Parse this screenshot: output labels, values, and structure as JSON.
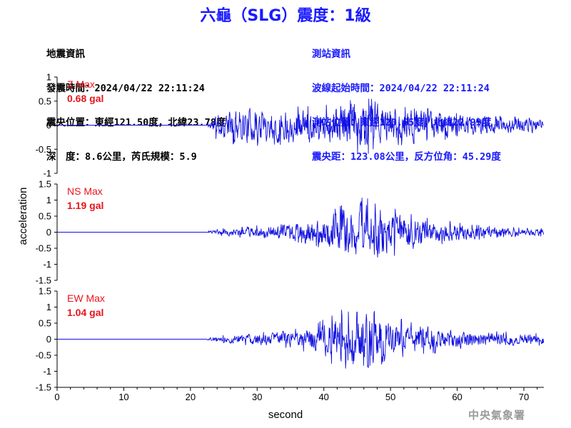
{
  "header": {
    "title": "六龜（SLG）震度：1級",
    "left_lines": [
      "地震資訊",
      "發震時間：2024/04/22 22:11:24",
      "震央位置：東經121.50度，北緯23.78度",
      "深　度：8.6公里，芮氏規模：5.9"
    ],
    "right_lines": [
      "測站資訊",
      "波線起始時間：2024/04/22 22:11:24",
      "測站位置：東經120.65度，北緯22.99度",
      "震央距：123.08公里，反方位角：45.29度"
    ]
  },
  "watermark": "中央氣象署",
  "colors": {
    "trace": "#1010e0",
    "max_label": "#e8141c",
    "title": "#1a1aff",
    "axis": "#000000"
  },
  "chart_data": {
    "type": "line",
    "xlabel": "second",
    "ylabel": "acceleration",
    "xlim": [
      0,
      73
    ],
    "x_ticks": [
      0,
      10,
      20,
      30,
      40,
      50,
      60,
      70
    ],
    "grid": false,
    "onset_second": 22.5,
    "panels": [
      {
        "component": "Z",
        "max_label": "Z Max",
        "max_value": "0.68 gal",
        "ylim": [
          -1,
          1
        ],
        "y_ticks": [
          1,
          0.5,
          0,
          -0.5,
          -1
        ],
        "y_tick_labels": [
          "1",
          "0.5",
          "0",
          "-0.5",
          "-1"
        ],
        "envelope": [
          [
            0,
            0.005
          ],
          [
            22.3,
            0.005
          ],
          [
            22.8,
            0.12
          ],
          [
            24,
            0.3
          ],
          [
            27,
            0.4
          ],
          [
            30,
            0.42
          ],
          [
            33,
            0.4
          ],
          [
            36,
            0.38
          ],
          [
            40,
            0.4
          ],
          [
            43,
            0.5
          ],
          [
            45,
            0.62
          ],
          [
            47,
            0.55
          ],
          [
            50,
            0.45
          ],
          [
            53,
            0.38
          ],
          [
            57,
            0.32
          ],
          [
            60,
            0.25
          ],
          [
            65,
            0.2
          ],
          [
            70,
            0.17
          ],
          [
            73,
            0.15
          ]
        ],
        "seed": 11
      },
      {
        "component": "NS",
        "max_label": "NS Max",
        "max_value": "1.19 gal",
        "ylim": [
          -1.5,
          1.5
        ],
        "y_ticks": [
          1.5,
          1,
          0.5,
          0,
          -0.5,
          -1,
          -1.5
        ],
        "y_tick_labels": [
          "1.5",
          "1",
          "0.5",
          "0",
          "-0.5",
          "-1",
          "-1.5"
        ],
        "envelope": [
          [
            0,
            0.005
          ],
          [
            22.3,
            0.005
          ],
          [
            22.8,
            0.05
          ],
          [
            25,
            0.12
          ],
          [
            30,
            0.2
          ],
          [
            35,
            0.28
          ],
          [
            38,
            0.38
          ],
          [
            40,
            0.55
          ],
          [
            42,
            0.75
          ],
          [
            44,
            0.9
          ],
          [
            46,
            1.05
          ],
          [
            47.5,
            0.95
          ],
          [
            50,
            0.75
          ],
          [
            53,
            0.55
          ],
          [
            56,
            0.4
          ],
          [
            60,
            0.3
          ],
          [
            65,
            0.18
          ],
          [
            70,
            0.13
          ],
          [
            73,
            0.12
          ]
        ],
        "seed": 23
      },
      {
        "component": "EW",
        "max_label": "EW Max",
        "max_value": "1.04 gal",
        "ylim": [
          -1.5,
          1.5
        ],
        "y_ticks": [
          1.5,
          1,
          0.5,
          0,
          -0.5,
          -1,
          -1.5
        ],
        "y_tick_labels": [
          "1.5",
          "1",
          "0.5",
          "0",
          "-0.5",
          "-1",
          "-1.5"
        ],
        "envelope": [
          [
            0,
            0.005
          ],
          [
            22.3,
            0.005
          ],
          [
            22.8,
            0.06
          ],
          [
            25,
            0.12
          ],
          [
            30,
            0.2
          ],
          [
            35,
            0.28
          ],
          [
            38,
            0.4
          ],
          [
            40,
            0.6
          ],
          [
            42,
            0.85
          ],
          [
            44,
            0.95
          ],
          [
            46,
            0.9
          ],
          [
            48,
            0.85
          ],
          [
            50,
            0.7
          ],
          [
            53,
            0.55
          ],
          [
            56,
            0.45
          ],
          [
            60,
            0.35
          ],
          [
            65,
            0.25
          ],
          [
            70,
            0.2
          ],
          [
            73,
            0.18
          ]
        ],
        "seed": 37
      }
    ]
  }
}
